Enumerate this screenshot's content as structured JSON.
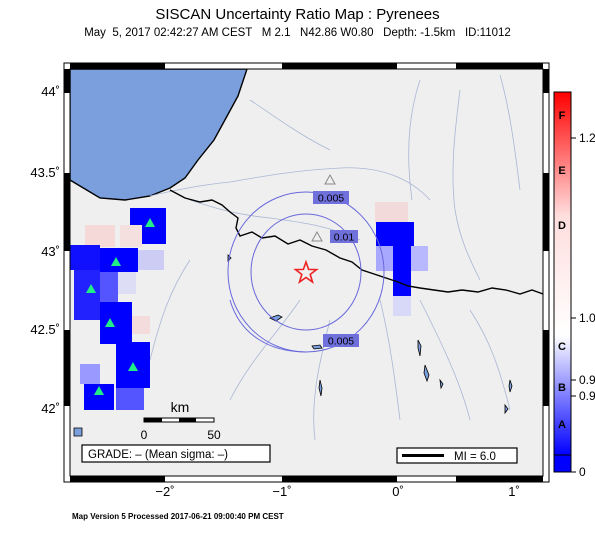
{
  "header": {
    "title": "SISCAN Uncertainty Ratio Map : Pyrenees",
    "subtitle": "May  5, 2017 02:42:27 AM CEST   M 2.1   N42.86 W0.80   Depth: -1.5km   ID:11012"
  },
  "axes": {
    "lat_ticks": [
      "44˚",
      "43.5˚",
      "43˚",
      "42.5˚",
      "42˚"
    ],
    "lon_ticks": [
      "−2˚",
      "−1˚",
      "0˚",
      "1˚"
    ]
  },
  "contours": [
    "0.005",
    "0.01",
    "0.005"
  ],
  "scale_bar": {
    "unit": "km",
    "ticks": [
      "0",
      "50"
    ]
  },
  "grade_box": {
    "text": "GRADE: – (Mean sigma: –)"
  },
  "mi_legend": {
    "text": "MI = 6.0"
  },
  "colorbar": {
    "letters": [
      "F",
      "E",
      "D",
      "C",
      "B",
      "A"
    ],
    "values": [
      "1.2",
      "1.0",
      "0.9",
      "0.9",
      "0"
    ]
  },
  "footer": {
    "text": "Map Version 5 Processed 2017-06-21 09:00:40 PM CEST"
  },
  "colors": {
    "sea": "#7a9fdc",
    "land": "#efefef",
    "blue": "#0000ff",
    "red": "#ff0000",
    "station": "#22ee88"
  }
}
